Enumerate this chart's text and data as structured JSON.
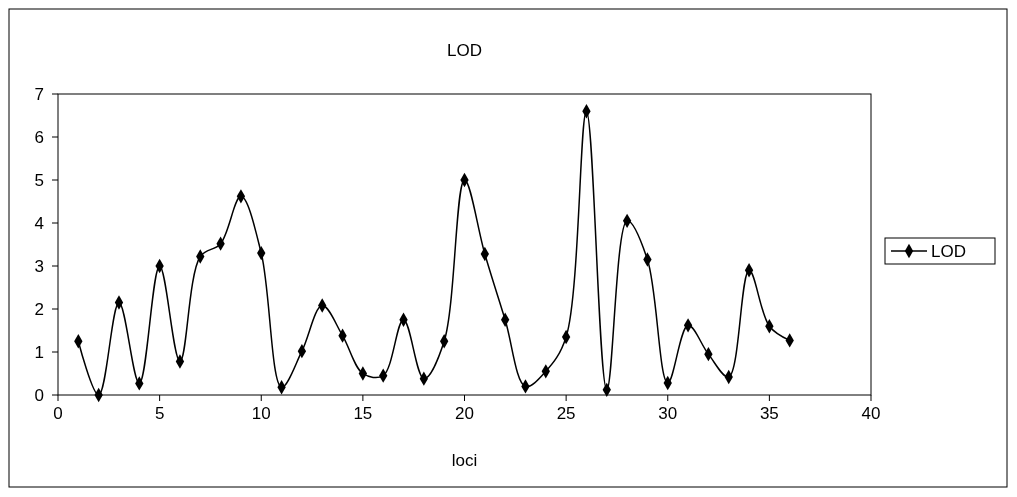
{
  "chart_data": {
    "type": "line",
    "title": "LOD",
    "xlabel": "loci",
    "x": [
      1,
      2,
      3,
      4,
      5,
      6,
      7,
      8,
      9,
      10,
      11,
      12,
      13,
      14,
      15,
      16,
      17,
      18,
      19,
      20,
      21,
      22,
      23,
      24,
      25,
      26,
      27,
      28,
      29,
      30,
      31,
      32,
      33,
      34,
      35,
      36
    ],
    "series": [
      {
        "name": "LOD",
        "color": "#000000",
        "values": [
          1.25,
          0,
          2.15,
          0.27,
          3.0,
          0.78,
          3.22,
          3.52,
          4.62,
          3.3,
          0.18,
          1.02,
          2.08,
          1.38,
          0.5,
          0.45,
          1.75,
          0.38,
          1.25,
          5.0,
          3.28,
          1.75,
          0.2,
          0.55,
          1.35,
          6.6,
          0.12,
          4.05,
          3.15,
          0.28,
          1.62,
          0.95,
          0.42,
          2.9,
          1.6,
          1.27
        ]
      }
    ],
    "xlim": [
      0,
      40
    ],
    "xticks": [
      0,
      5,
      10,
      15,
      20,
      25,
      30,
      35,
      40
    ],
    "ylim": [
      0,
      7
    ],
    "yticks": [
      0,
      1,
      2,
      3,
      4,
      5,
      6,
      7
    ],
    "legend": "right",
    "marker": "diamond",
    "line_style": "solid"
  }
}
